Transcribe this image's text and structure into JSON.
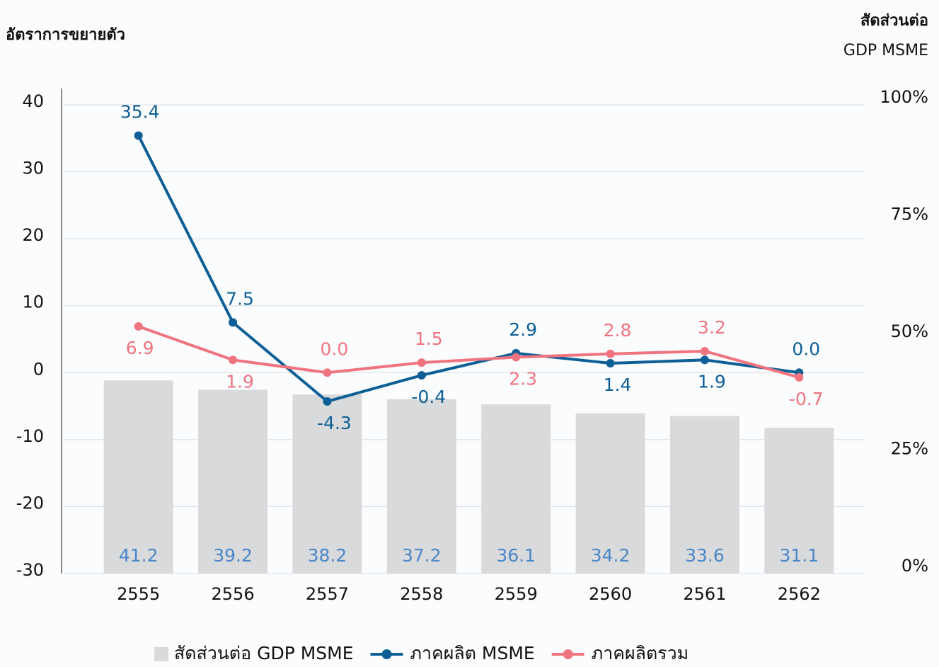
{
  "chart_data": {
    "type": "combo",
    "ylabel": "อัตราการขยายตัว",
    "y2label": [
      "สัดส่วนต่อ",
      "GDP MSME"
    ],
    "categories": [
      "2555",
      "2556",
      "2557",
      "2558",
      "2559",
      "2560",
      "2561",
      "2562"
    ],
    "ylim": [
      -30,
      40
    ],
    "yticks": [
      -30,
      -20,
      -10,
      0,
      10,
      20,
      30,
      40
    ],
    "y2lim": [
      0,
      100
    ],
    "y2ticks": [
      {
        "value": 0,
        "label": "0%"
      },
      {
        "value": 25,
        "label": "25%"
      },
      {
        "value": 50,
        "label": "50%"
      },
      {
        "value": 75,
        "label": "75%"
      },
      {
        "value": 100,
        "label": "100%"
      }
    ],
    "grid": true,
    "series": [
      {
        "name": "สัดส่วนต่อ GDP MSME",
        "type": "bar",
        "axis": "y2",
        "color": "#d9dadb",
        "label_color": "#4a86c8",
        "values": [
          41.2,
          39.2,
          38.2,
          37.2,
          36.1,
          34.2,
          33.6,
          31.1
        ]
      },
      {
        "name": "ภาคผลิต MSME",
        "type": "line",
        "color": "#0e5f96",
        "values": [
          35.4,
          7.5,
          -4.3,
          -0.4,
          2.9,
          1.4,
          1.9,
          0.0
        ],
        "value_labels": [
          "35.4",
          "7.5",
          "-4.3",
          "-0.4",
          "2.9",
          "1.4",
          "1.9",
          "0.0"
        ]
      },
      {
        "name": "ภาคผลิตรวม",
        "type": "line",
        "color": "#f07480",
        "values": [
          6.9,
          1.9,
          0.0,
          1.5,
          2.3,
          2.8,
          3.2,
          -0.7
        ],
        "value_labels": [
          "6.9",
          "1.9",
          "0.0",
          "1.5",
          "2.3",
          "2.8",
          "3.2",
          "-0.7"
        ]
      }
    ]
  }
}
